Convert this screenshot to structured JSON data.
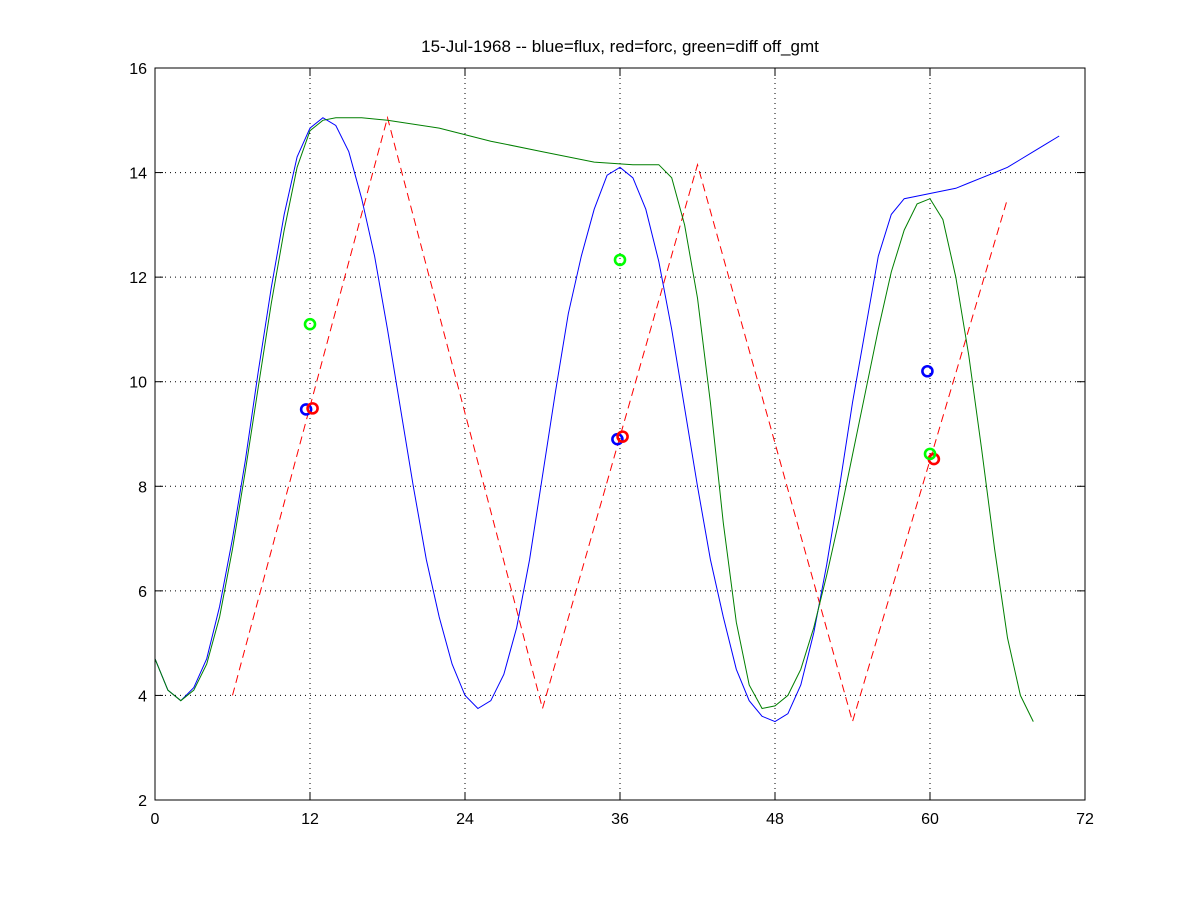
{
  "chart_data": {
    "type": "line",
    "title": "15-Jul-1968 -- blue=flux, red=forc, green=diff off_gmt",
    "xlabel": "",
    "ylabel": "",
    "xlim": [
      0,
      72
    ],
    "ylim": [
      2,
      16
    ],
    "xticks": [
      0,
      12,
      24,
      36,
      48,
      60,
      72
    ],
    "yticks": [
      2,
      4,
      6,
      8,
      10,
      12,
      14,
      16
    ],
    "grid": true,
    "grid_style": "dotted",
    "series": [
      {
        "color": "#0000ff",
        "style": "solid",
        "points": [
          [
            0,
            4.7
          ],
          [
            1,
            4.1
          ],
          [
            2,
            3.9
          ],
          [
            3,
            4.15
          ],
          [
            4,
            4.7
          ],
          [
            5,
            5.7
          ],
          [
            6,
            7.0
          ],
          [
            7,
            8.5
          ],
          [
            8,
            10.2
          ],
          [
            9,
            11.8
          ],
          [
            10,
            13.2
          ],
          [
            11,
            14.3
          ],
          [
            12,
            14.85
          ],
          [
            13,
            15.05
          ],
          [
            14,
            14.9
          ],
          [
            15,
            14.4
          ],
          [
            16,
            13.5
          ],
          [
            17,
            12.4
          ],
          [
            18,
            11.0
          ],
          [
            19,
            9.5
          ],
          [
            20,
            8.0
          ],
          [
            21,
            6.6
          ],
          [
            22,
            5.5
          ],
          [
            23,
            4.6
          ],
          [
            24,
            4.0
          ],
          [
            25,
            3.75
          ],
          [
            26,
            3.9
          ],
          [
            27,
            4.4
          ],
          [
            28,
            5.3
          ],
          [
            29,
            6.6
          ],
          [
            30,
            8.2
          ],
          [
            31,
            9.8
          ],
          [
            32,
            11.3
          ],
          [
            33,
            12.4
          ],
          [
            34,
            13.3
          ],
          [
            35,
            13.95
          ],
          [
            36,
            14.1
          ],
          [
            37,
            13.9
          ],
          [
            38,
            13.3
          ],
          [
            39,
            12.3
          ],
          [
            40,
            11.0
          ],
          [
            41,
            9.5
          ],
          [
            42,
            8.0
          ],
          [
            43,
            6.6
          ],
          [
            44,
            5.5
          ],
          [
            45,
            4.5
          ],
          [
            46,
            3.9
          ],
          [
            47,
            3.6
          ],
          [
            48,
            3.5
          ],
          [
            49,
            3.65
          ],
          [
            50,
            4.2
          ],
          [
            51,
            5.2
          ],
          [
            52,
            6.5
          ],
          [
            53,
            8.0
          ],
          [
            54,
            9.6
          ],
          [
            55,
            11.0
          ],
          [
            56,
            12.4
          ],
          [
            57,
            13.2
          ],
          [
            58,
            13.5
          ],
          [
            59,
            13.55
          ],
          [
            60,
            13.6
          ],
          [
            61,
            13.65
          ],
          [
            62,
            13.7
          ],
          [
            63,
            13.8
          ],
          [
            64,
            13.9
          ],
          [
            65,
            14.0
          ],
          [
            66,
            14.1
          ],
          [
            67,
            14.25
          ],
          [
            68,
            14.4
          ],
          [
            69,
            14.55
          ],
          [
            70,
            14.7
          ]
        ]
      },
      {
        "color": "#ff0000",
        "style": "dashed",
        "points": [
          [
            6,
            4.0
          ],
          [
            18,
            15.05
          ],
          [
            30,
            3.75
          ],
          [
            42,
            14.15
          ],
          [
            54,
            3.5
          ],
          [
            66,
            13.5
          ]
        ]
      },
      {
        "color": "#007f00",
        "style": "solid",
        "points": [
          [
            0,
            4.7
          ],
          [
            1,
            4.1
          ],
          [
            2,
            3.9
          ],
          [
            3,
            4.1
          ],
          [
            4,
            4.6
          ],
          [
            5,
            5.5
          ],
          [
            6,
            6.8
          ],
          [
            7,
            8.3
          ],
          [
            8,
            9.9
          ],
          [
            9,
            11.5
          ],
          [
            10,
            12.9
          ],
          [
            11,
            14.1
          ],
          [
            12,
            14.8
          ],
          [
            13,
            15.0
          ],
          [
            14,
            15.05
          ],
          [
            16,
            15.05
          ],
          [
            18,
            15.0
          ],
          [
            22,
            14.85
          ],
          [
            26,
            14.6
          ],
          [
            30,
            14.4
          ],
          [
            34,
            14.2
          ],
          [
            37,
            14.15
          ],
          [
            39,
            14.15
          ],
          [
            40,
            13.9
          ],
          [
            41,
            13.0
          ],
          [
            42,
            11.6
          ],
          [
            43,
            9.6
          ],
          [
            44,
            7.3
          ],
          [
            45,
            5.4
          ],
          [
            46,
            4.2
          ],
          [
            47,
            3.75
          ],
          [
            48,
            3.8
          ],
          [
            49,
            4.0
          ],
          [
            50,
            4.5
          ],
          [
            51,
            5.3
          ],
          [
            52,
            6.3
          ],
          [
            53,
            7.4
          ],
          [
            54,
            8.6
          ],
          [
            55,
            9.8
          ],
          [
            56,
            11.0
          ],
          [
            57,
            12.1
          ],
          [
            58,
            12.9
          ],
          [
            59,
            13.4
          ],
          [
            60,
            13.5
          ],
          [
            61,
            13.1
          ],
          [
            62,
            12.0
          ],
          [
            63,
            10.5
          ],
          [
            64,
            8.7
          ],
          [
            65,
            6.8
          ],
          [
            66,
            5.1
          ],
          [
            67,
            4.0
          ],
          [
            68,
            3.5
          ]
        ]
      }
    ],
    "markers": [
      {
        "x": 11.7,
        "y": 9.47,
        "color": "#0000ff"
      },
      {
        "x": 12.2,
        "y": 9.49,
        "color": "#ff0000"
      },
      {
        "x": 12.0,
        "y": 11.1,
        "color": "#00ff00"
      },
      {
        "x": 35.8,
        "y": 8.9,
        "color": "#0000ff"
      },
      {
        "x": 36.2,
        "y": 8.95,
        "color": "#ff0000"
      },
      {
        "x": 36.0,
        "y": 12.33,
        "color": "#00ff00"
      },
      {
        "x": 59.8,
        "y": 10.2,
        "color": "#0000ff"
      },
      {
        "x": 60.3,
        "y": 8.52,
        "color": "#ff0000"
      },
      {
        "x": 60.0,
        "y": 8.62,
        "color": "#00ff00"
      }
    ]
  }
}
